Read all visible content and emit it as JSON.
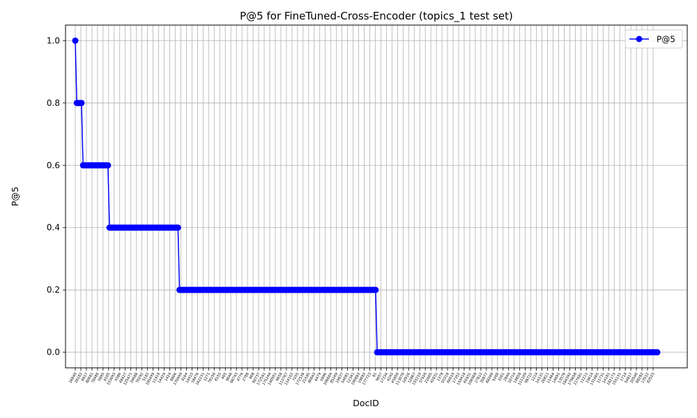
{
  "chart_data": {
    "type": "line",
    "title": "P@5 for FineTuned-Cross-Encoder (topics_1 test set)",
    "xlabel": "DocID",
    "ylabel": "P@5",
    "ylim": [
      -0.05,
      1.05
    ],
    "yticks": [
      0.0,
      0.2,
      0.4,
      0.6,
      0.8,
      1.0
    ],
    "grid": true,
    "legend": {
      "position": "top-right",
      "entries": [
        "P@5"
      ]
    },
    "series": [
      {
        "name": "P@5",
        "color": "#0000ff",
        "marker": "circle",
        "runs": [
          {
            "value": 1.0,
            "count": 1
          },
          {
            "value": 0.8,
            "count": 4
          },
          {
            "value": 0.6,
            "count": 17
          },
          {
            "value": 0.4,
            "count": 45
          },
          {
            "value": 0.2,
            "count": 127
          },
          {
            "value": 0.0,
            "count": 181
          }
        ]
      }
    ],
    "xtick_labels": [
      "26840",
      "28182",
      "8917",
      "80681",
      "78480",
      "5895",
      "8105",
      "153093",
      "4386",
      "49427",
      "125471",
      "34688",
      "70292",
      "5182",
      "185499",
      "11919",
      "14424",
      "1424",
      "8806",
      "170449",
      "9164",
      "14415",
      "18476",
      "162231",
      "1271",
      "78150",
      "8155",
      "405",
      "9646",
      "88743",
      "4776",
      "2788",
      "968",
      "60737",
      "172591",
      "175244",
      "140951",
      "9658",
      "113767",
      "114102",
      "7255",
      "172538",
      "21595",
      "86843",
      "6479",
      "5896",
      "106604",
      "85269",
      "19837",
      "54081",
      "12341",
      "190883",
      "19683",
      "177723",
      "81",
      "9657",
      "17334",
      "4245",
      "45850",
      "113070",
      "10916",
      "12867",
      "155219",
      "37920",
      "22605",
      "42831",
      "1378",
      "93318",
      "60019",
      "17352",
      "154418",
      "65931",
      "106908",
      "17812",
      "35877",
      "68260",
      "5260",
      "3201",
      "2844",
      "10714",
      "19858",
      "111109",
      "98722",
      "1214",
      "14131",
      "26811",
      "11464",
      "14691",
      "13576",
      "184392",
      "179658",
      "117681",
      "11211",
      "19614",
      "131665",
      "11731",
      "14181",
      "181173",
      "155131",
      "1714",
      "54817",
      "20540",
      "88282",
      "13512",
      "83525"
    ]
  }
}
